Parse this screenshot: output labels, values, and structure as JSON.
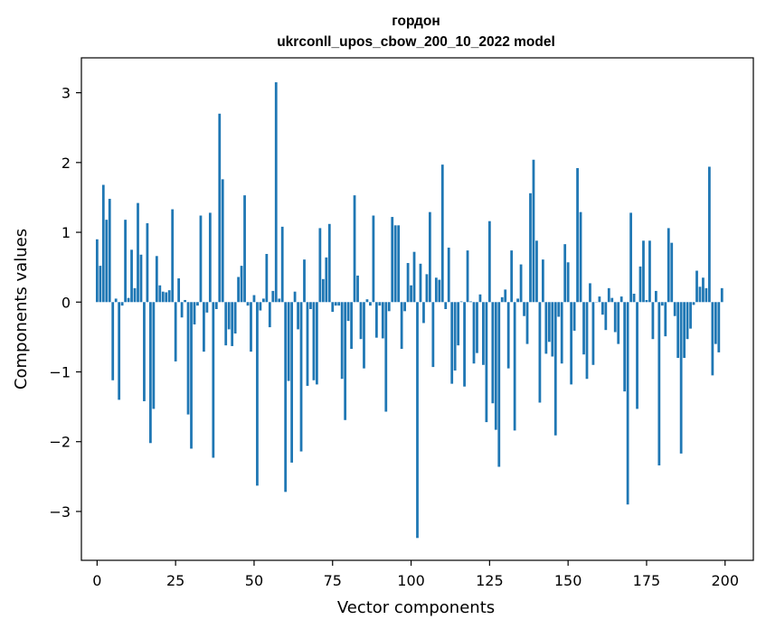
{
  "chart_data": {
    "type": "bar",
    "title": "гордон",
    "subtitle": "ukrconll_upos_cbow_200_10_2022 model",
    "xlabel": "Vector components",
    "ylabel": "Components values",
    "xlim": [
      -5,
      209
    ],
    "ylim": [
      -3.7,
      3.5
    ],
    "xticks": [
      0,
      25,
      50,
      75,
      100,
      125,
      150,
      175,
      200
    ],
    "xtick_labels": [
      "0",
      "25",
      "50",
      "75",
      "100",
      "125",
      "150",
      "175",
      "200"
    ],
    "yticks": [
      -3,
      -2,
      -1,
      0,
      1,
      2,
      3
    ],
    "ytick_labels": [
      "−3",
      "−2",
      "−1",
      "0",
      "1",
      "2",
      "3"
    ],
    "grid": false,
    "bar_color": "#1f77b4",
    "x": [
      0,
      1,
      2,
      3,
      4,
      5,
      6,
      7,
      8,
      9,
      10,
      11,
      12,
      13,
      14,
      15,
      16,
      17,
      18,
      19,
      20,
      21,
      22,
      23,
      24,
      25,
      26,
      27,
      28,
      29,
      30,
      31,
      32,
      33,
      34,
      35,
      36,
      37,
      38,
      39,
      40,
      41,
      42,
      43,
      44,
      45,
      46,
      47,
      48,
      49,
      50,
      51,
      52,
      53,
      54,
      55,
      56,
      57,
      58,
      59,
      60,
      61,
      62,
      63,
      64,
      65,
      66,
      67,
      68,
      69,
      70,
      71,
      72,
      73,
      74,
      75,
      76,
      77,
      78,
      79,
      80,
      81,
      82,
      83,
      84,
      85,
      86,
      87,
      88,
      89,
      90,
      91,
      92,
      93,
      94,
      95,
      96,
      97,
      98,
      99,
      100,
      101,
      102,
      103,
      104,
      105,
      106,
      107,
      108,
      109,
      110,
      111,
      112,
      113,
      114,
      115,
      116,
      117,
      118,
      119,
      120,
      121,
      122,
      123,
      124,
      125,
      126,
      127,
      128,
      129,
      130,
      131,
      132,
      133,
      134,
      135,
      136,
      137,
      138,
      139,
      140,
      141,
      142,
      143,
      144,
      145,
      146,
      147,
      148,
      149,
      150,
      151,
      152,
      153,
      154,
      155,
      156,
      157,
      158,
      159,
      160,
      161,
      162,
      163,
      164,
      165,
      166,
      167,
      168,
      169,
      170,
      171,
      172,
      173,
      174,
      175,
      176,
      177,
      178,
      179,
      180,
      181,
      182,
      183,
      184,
      185,
      186,
      187,
      188,
      189,
      190,
      191,
      192,
      193,
      194,
      195,
      196,
      197,
      198,
      199
    ],
    "values": [
      0.9,
      0.52,
      1.68,
      1.18,
      1.48,
      -1.12,
      0.05,
      -1.4,
      -0.05,
      1.18,
      0.06,
      0.75,
      0.2,
      1.42,
      0.68,
      -1.42,
      1.13,
      -2.02,
      -1.53,
      0.66,
      0.24,
      0.15,
      0.14,
      0.17,
      1.33,
      -0.85,
      0.34,
      -0.22,
      0.03,
      -1.61,
      -2.1,
      -0.32,
      -0.05,
      1.24,
      -0.71,
      -0.15,
      1.28,
      -2.23,
      -0.1,
      2.7,
      1.76,
      -0.62,
      -0.39,
      -0.63,
      -0.45,
      0.36,
      0.52,
      1.53,
      -0.05,
      -0.71,
      0.1,
      -2.63,
      -0.12,
      0.05,
      0.69,
      -0.36,
      0.16,
      3.15,
      0.05,
      1.08,
      -2.72,
      -1.13,
      -2.3,
      0.15,
      -0.39,
      -2.14,
      0.61,
      -1.2,
      -0.1,
      -1.12,
      -1.18,
      1.06,
      0.33,
      0.64,
      1.12,
      -0.14,
      -0.05,
      -0.05,
      -1.1,
      -1.69,
      -0.27,
      -0.67,
      1.53,
      0.38,
      -0.53,
      -0.95,
      0.04,
      -0.05,
      1.24,
      -0.51,
      -0.05,
      -0.52,
      -1.57,
      -0.13,
      1.22,
      1.1,
      1.1,
      -0.67,
      -0.13,
      0.56,
      0.24,
      0.72,
      -3.38,
      0.55,
      -0.3,
      0.4,
      1.29,
      -0.93,
      0.35,
      0.32,
      1.97,
      -0.1,
      0.78,
      -1.17,
      -0.98,
      -0.62,
      0.01,
      -1.21,
      0.74,
      0.01,
      -0.88,
      -0.73,
      0.11,
      -0.9,
      -1.72,
      1.16,
      -1.45,
      -1.83,
      -2.36,
      0.07,
      0.18,
      -0.95,
      0.74,
      -1.84,
      0.05,
      0.54,
      -0.2,
      -0.6,
      1.56,
      2.04,
      0.88,
      -1.44,
      0.61,
      -0.74,
      -0.57,
      -0.78,
      -1.91,
      -0.21,
      -0.88,
      0.83,
      0.57,
      -1.18,
      -0.41,
      1.92,
      1.29,
      -0.75,
      -1.1,
      0.27,
      -0.9,
      0.0,
      0.08,
      -0.18,
      -0.4,
      0.2,
      0.06,
      -0.43,
      -0.6,
      0.08,
      -1.28,
      -2.9,
      1.28,
      0.12,
      -1.53,
      0.51,
      0.88,
      0.03,
      0.88,
      -0.53,
      0.16,
      -2.34,
      -0.05,
      -0.49,
      1.06,
      0.85,
      -0.2,
      -0.8,
      -2.17,
      -0.8,
      -0.53,
      -0.38,
      -0.04,
      0.45,
      0.22,
      0.35,
      0.2,
      1.94,
      -1.05,
      -0.6,
      -0.72,
      0.2
    ]
  }
}
